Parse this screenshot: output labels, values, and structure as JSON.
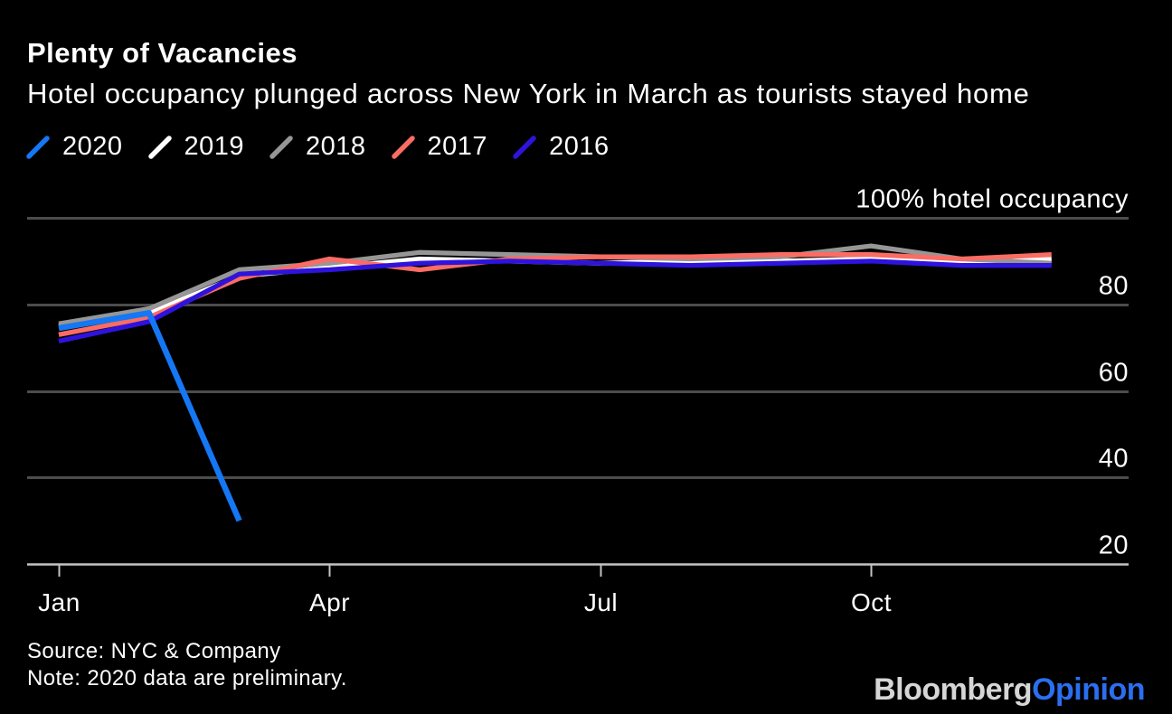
{
  "header": {
    "title": "Plenty of Vacancies",
    "subtitle": "Hotel occupancy plunged across New York in March as tourists stayed home"
  },
  "chart_data": {
    "type": "line",
    "x": [
      "Jan",
      "Feb",
      "Mar",
      "Apr",
      "May",
      "Jun",
      "Jul",
      "Aug",
      "Sep",
      "Oct",
      "Nov",
      "Dec"
    ],
    "x_axis": {
      "ticks": [
        {
          "index": 0,
          "label": "Jan"
        },
        {
          "index": 3,
          "label": "Apr"
        },
        {
          "index": 6,
          "label": "Jul"
        },
        {
          "index": 9,
          "label": "Oct"
        }
      ]
    },
    "y_axis": {
      "range": [
        20,
        100
      ],
      "gridlines": [
        {
          "value": 100,
          "label": "100% hotel occupancy"
        },
        {
          "value": 80,
          "label": "80"
        },
        {
          "value": 60,
          "label": "60"
        },
        {
          "value": 40,
          "label": "40"
        },
        {
          "value": 20,
          "label": "20",
          "axis": true
        }
      ]
    },
    "series": [
      {
        "name": "2020",
        "color": "#1577f3",
        "values": [
          74.5,
          78,
          30,
          null,
          null,
          null,
          null,
          null,
          null,
          null,
          null,
          null
        ]
      },
      {
        "name": "2019",
        "color": "#ffffff",
        "values": [
          75,
          78,
          86.5,
          88.5,
          90.5,
          90,
          89.5,
          90,
          90,
          90.5,
          89.5,
          90.5
        ]
      },
      {
        "name": "2018",
        "color": "#969696",
        "values": [
          75.5,
          79,
          88,
          89.5,
          92,
          91.5,
          91,
          90.5,
          91,
          93.5,
          90.5,
          89.5
        ]
      },
      {
        "name": "2017",
        "color": "#fa6c64",
        "values": [
          73,
          77,
          86,
          90.5,
          88,
          90.5,
          91,
          91,
          91.5,
          91.5,
          90.5,
          91.5
        ]
      },
      {
        "name": "2016",
        "color": "#2e13dc",
        "values": [
          71.5,
          76,
          87,
          88,
          89.5,
          90,
          89.5,
          89,
          89.5,
          90,
          89,
          89
        ]
      }
    ],
    "legend_position": "top-left",
    "grid": true
  },
  "colors": {
    "background": "#000000",
    "gridline": "#4c4c4c",
    "axis_line": "#c2c2c2",
    "text": "#ffffff"
  },
  "footer": {
    "source": "Source: NYC & Company",
    "note": "Note: 2020 data are preliminary."
  },
  "brand": {
    "main": "Bloomberg",
    "suffix": "Opinion"
  }
}
